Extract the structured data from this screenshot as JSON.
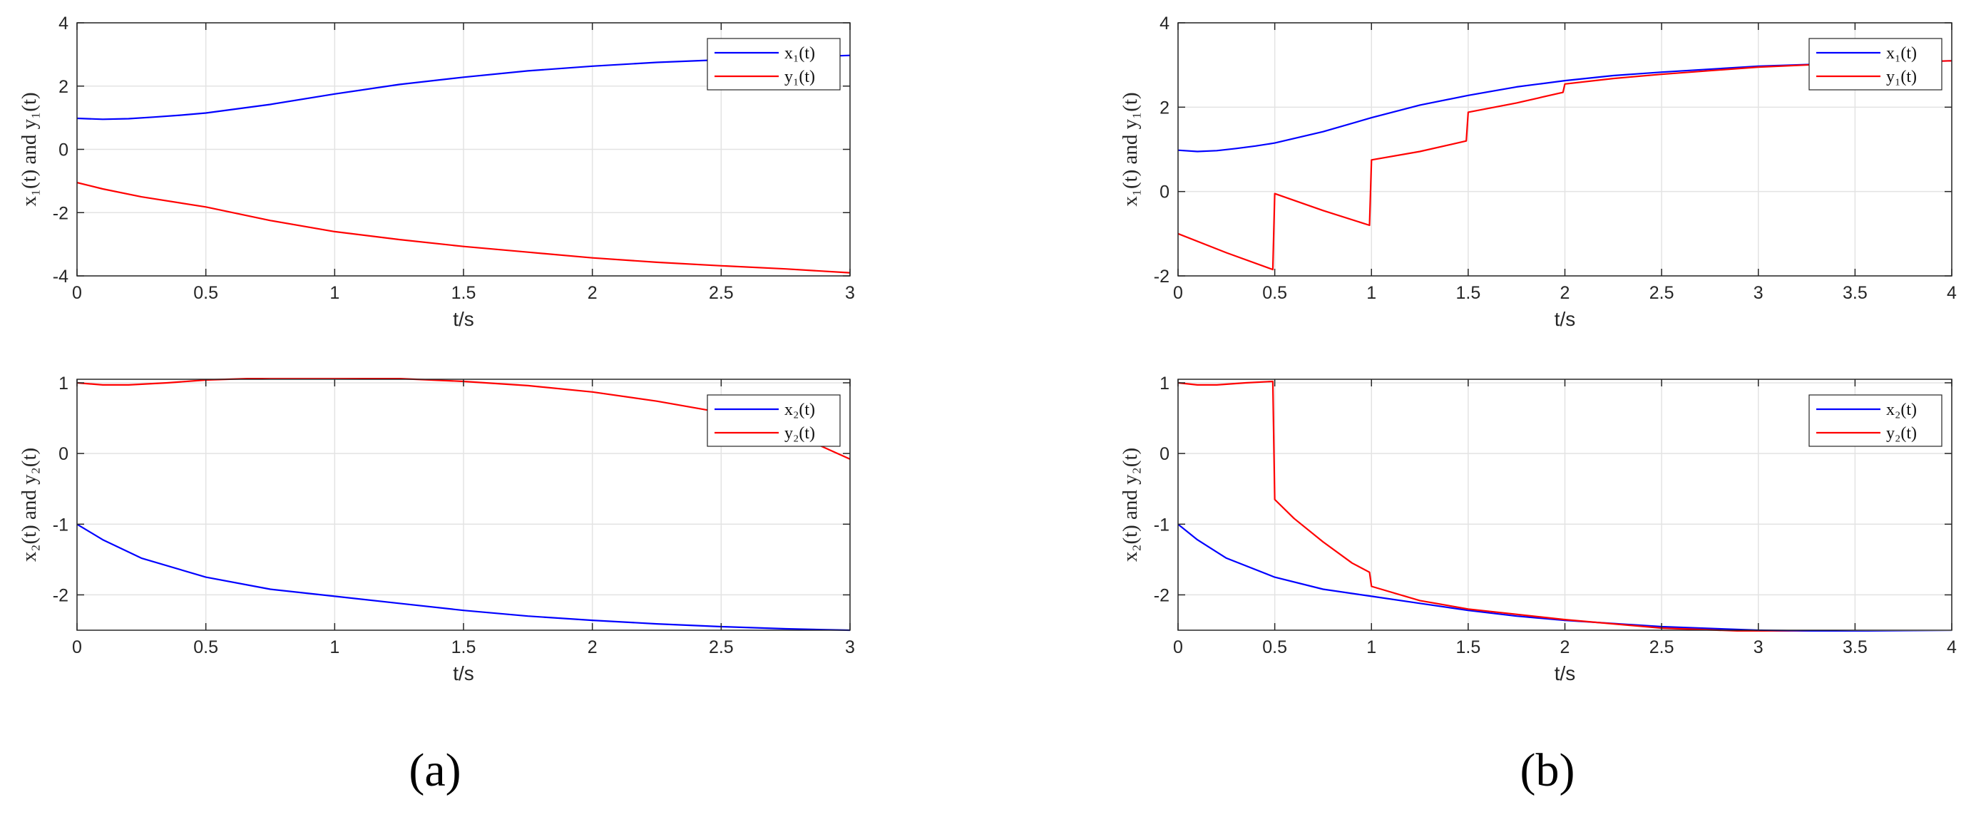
{
  "figure": {
    "panels": [
      {
        "id": "a",
        "label": "(a)"
      },
      {
        "id": "b",
        "label": "(b)"
      }
    ]
  },
  "chart_data": [
    {
      "type": "line",
      "panel": "a",
      "xlabel": "t/s",
      "ylabel": "x₁(t) and y₁(t)",
      "xlim": [
        0,
        3
      ],
      "ylim": [
        -4,
        4
      ],
      "xticks": [
        0,
        0.5,
        1,
        1.5,
        2,
        2.5,
        3
      ],
      "xticklabels": [
        "0",
        "0.5",
        "1",
        "1.5",
        "2",
        "2.5",
        "3"
      ],
      "yticks": [
        -4,
        -2,
        0,
        2,
        4
      ],
      "yticklabels": [
        "-4",
        "-2",
        "0",
        "2",
        "4"
      ],
      "grid": true,
      "legend": "top-right",
      "series": [
        {
          "name": "x₁(t)",
          "color": "#0000ff",
          "x": [
            0,
            0.1,
            0.2,
            0.3,
            0.4,
            0.5,
            0.75,
            1,
            1.25,
            1.5,
            1.75,
            2,
            2.25,
            2.5,
            2.75,
            3
          ],
          "y": [
            0.98,
            0.95,
            0.97,
            1.02,
            1.08,
            1.15,
            1.42,
            1.75,
            2.05,
            2.28,
            2.48,
            2.63,
            2.75,
            2.83,
            2.9,
            2.97
          ]
        },
        {
          "name": "y₁(t)",
          "color": "#ff0000",
          "x": [
            0,
            0.1,
            0.25,
            0.5,
            0.75,
            1,
            1.25,
            1.5,
            1.75,
            2,
            2.25,
            2.5,
            2.75,
            3
          ],
          "y": [
            -1.05,
            -1.25,
            -1.5,
            -1.82,
            -2.25,
            -2.6,
            -2.85,
            -3.07,
            -3.25,
            -3.43,
            -3.57,
            -3.68,
            -3.78,
            -3.9
          ]
        }
      ]
    },
    {
      "type": "line",
      "panel": "a",
      "xlabel": "t/s",
      "ylabel": "x₂(t) and y₂(t)",
      "xlim": [
        0,
        3
      ],
      "ylim": [
        -2.5,
        1.05
      ],
      "xticks": [
        0,
        0.5,
        1,
        1.5,
        2,
        2.5,
        3
      ],
      "xticklabels": [
        "0",
        "0.5",
        "1",
        "1.5",
        "2",
        "2.5",
        "3"
      ],
      "yticks": [
        -2,
        -1,
        0,
        1
      ],
      "yticklabels": [
        "-2",
        "-1",
        "0",
        "1"
      ],
      "grid": true,
      "legend": "top-right",
      "series": [
        {
          "name": "x₂(t)",
          "color": "#0000ff",
          "x": [
            0,
            0.1,
            0.25,
            0.5,
            0.75,
            1,
            1.25,
            1.5,
            1.75,
            2,
            2.25,
            2.5,
            2.75,
            3
          ],
          "y": [
            -1.0,
            -1.22,
            -1.48,
            -1.75,
            -1.92,
            -2.02,
            -2.12,
            -2.22,
            -2.3,
            -2.36,
            -2.41,
            -2.45,
            -2.48,
            -2.5
          ]
        },
        {
          "name": "y₂(t)",
          "color": "#ff0000",
          "x": [
            0,
            0.1,
            0.2,
            0.35,
            0.5,
            0.75,
            1,
            1.25,
            1.5,
            1.75,
            2,
            2.25,
            2.5,
            2.75,
            3
          ],
          "y": [
            1.0,
            0.97,
            0.97,
            1.0,
            1.04,
            1.07,
            1.07,
            1.06,
            1.02,
            0.96,
            0.87,
            0.74,
            0.58,
            0.33,
            -0.08
          ]
        }
      ]
    },
    {
      "type": "line",
      "panel": "b",
      "xlabel": "t/s",
      "ylabel": "x₁(t) and y₁(t)",
      "xlim": [
        0,
        4
      ],
      "ylim": [
        -2,
        4
      ],
      "xticks": [
        0,
        0.5,
        1,
        1.5,
        2,
        2.5,
        3,
        3.5,
        4
      ],
      "xticklabels": [
        "0",
        "0.5",
        "1",
        "1.5",
        "2",
        "2.5",
        "3",
        "3.5",
        "4"
      ],
      "yticks": [
        -2,
        0,
        2,
        4
      ],
      "yticklabels": [
        "-2",
        "0",
        "2",
        "4"
      ],
      "grid": true,
      "legend": "top-right",
      "series": [
        {
          "name": "x₁(t)",
          "color": "#0000ff",
          "x": [
            0,
            0.1,
            0.2,
            0.3,
            0.4,
            0.5,
            0.75,
            1,
            1.25,
            1.5,
            1.75,
            2,
            2.25,
            2.5,
            3,
            3.5,
            4
          ],
          "y": [
            0.98,
            0.95,
            0.97,
            1.02,
            1.08,
            1.15,
            1.42,
            1.75,
            2.05,
            2.28,
            2.48,
            2.63,
            2.75,
            2.83,
            2.97,
            3.05,
            3.1
          ]
        },
        {
          "name": "y₁(t)",
          "color": "#ff0000",
          "x": [
            0,
            0.25,
            0.49,
            0.5,
            0.75,
            0.99,
            1.0,
            1.25,
            1.49,
            1.5,
            1.75,
            1.99,
            2.0,
            2.25,
            2.5,
            3,
            3.5,
            4
          ],
          "y": [
            -1.0,
            -1.45,
            -1.85,
            -0.05,
            -0.45,
            -0.8,
            0.75,
            0.95,
            1.2,
            1.88,
            2.1,
            2.35,
            2.55,
            2.68,
            2.78,
            2.95,
            3.05,
            3.1
          ]
        }
      ]
    },
    {
      "type": "line",
      "panel": "b",
      "xlabel": "t/s",
      "ylabel": "x₂(t) and y₂(t)",
      "xlim": [
        0,
        4
      ],
      "ylim": [
        -2.5,
        1.05
      ],
      "xticks": [
        0,
        0.5,
        1,
        1.5,
        2,
        2.5,
        3,
        3.5,
        4
      ],
      "xticklabels": [
        "0",
        "0.5",
        "1",
        "1.5",
        "2",
        "2.5",
        "3",
        "3.5",
        "4"
      ],
      "yticks": [
        -2,
        -1,
        0,
        1
      ],
      "yticklabels": [
        "-2",
        "-1",
        "0",
        "1"
      ],
      "grid": true,
      "legend": "top-right",
      "series": [
        {
          "name": "x₂(t)",
          "color": "#0000ff",
          "x": [
            0,
            0.1,
            0.25,
            0.5,
            0.75,
            1,
            1.25,
            1.5,
            1.75,
            2,
            2.5,
            3,
            3.5,
            4
          ],
          "y": [
            -1.0,
            -1.22,
            -1.48,
            -1.75,
            -1.92,
            -2.02,
            -2.12,
            -2.22,
            -2.3,
            -2.36,
            -2.45,
            -2.5,
            -2.52,
            -2.53
          ]
        },
        {
          "name": "y₂(t)",
          "color": "#ff0000",
          "x": [
            0,
            0.1,
            0.2,
            0.35,
            0.49,
            0.5,
            0.6,
            0.75,
            0.9,
            0.99,
            1.0,
            1.25,
            1.5,
            2,
            2.5,
            3,
            3.5,
            4
          ],
          "y": [
            1.0,
            0.97,
            0.97,
            1.0,
            1.02,
            -0.65,
            -0.92,
            -1.25,
            -1.55,
            -1.68,
            -1.88,
            -2.08,
            -2.2,
            -2.35,
            -2.47,
            -2.52,
            -2.54,
            -2.55
          ]
        }
      ]
    }
  ]
}
